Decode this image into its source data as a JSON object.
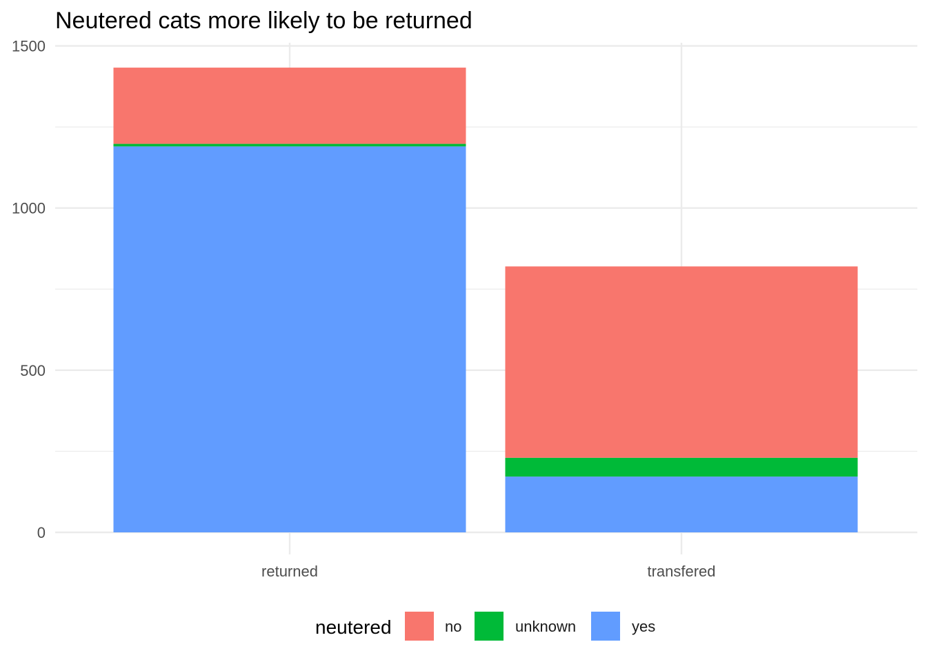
{
  "chart_data": {
    "type": "bar",
    "stacked": true,
    "title": "Neutered cats more likely to be returned",
    "xlabel": "",
    "ylabel": "",
    "categories": [
      "returned",
      "transfered"
    ],
    "series": [
      {
        "name": "yes",
        "color": "#619CFF",
        "values": [
          1190,
          172
        ]
      },
      {
        "name": "unknown",
        "color": "#00BA38",
        "values": [
          8,
          58
        ]
      },
      {
        "name": "no",
        "color": "#F8766D",
        "values": [
          235,
          590
        ]
      }
    ],
    "ylim": [
      0,
      1500
    ],
    "yticks": [
      0,
      500,
      1000,
      1500
    ],
    "grid": true,
    "legend": {
      "title": "neutered",
      "placement": "bottom",
      "items": [
        "no",
        "unknown",
        "yes"
      ]
    }
  }
}
